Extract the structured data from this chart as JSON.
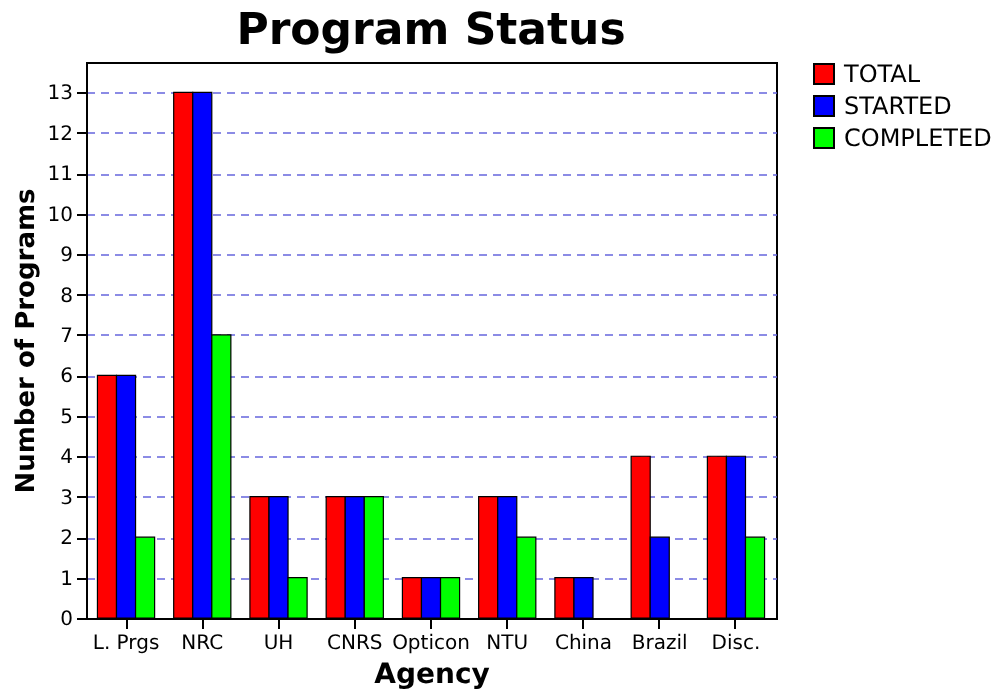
{
  "chart_data": {
    "type": "bar",
    "title": "Program Status",
    "xlabel": "Agency",
    "ylabel": "Number of Programs",
    "categories": [
      "L. Prgs",
      "NRC",
      "UH",
      "CNRS",
      "Opticon",
      "NTU",
      "China",
      "Brazil",
      "Disc."
    ],
    "series": [
      {
        "name": "TOTAL",
        "color": "#ff0000",
        "values": [
          6,
          13,
          3,
          3,
          1,
          3,
          1,
          4,
          4
        ]
      },
      {
        "name": "STARTED",
        "color": "#0000ff",
        "values": [
          6,
          13,
          3,
          3,
          1,
          3,
          1,
          2,
          4
        ]
      },
      {
        "name": "COMPLETED",
        "color": "#00ff00",
        "values": [
          2,
          7,
          1,
          3,
          1,
          2,
          null,
          null,
          2
        ]
      }
    ],
    "ylim": [
      0,
      13.75
    ],
    "yticks": [
      0,
      1,
      2,
      3,
      4,
      5,
      6,
      7,
      8,
      9,
      10,
      11,
      12,
      13
    ],
    "grid": "y",
    "legend": "right"
  }
}
